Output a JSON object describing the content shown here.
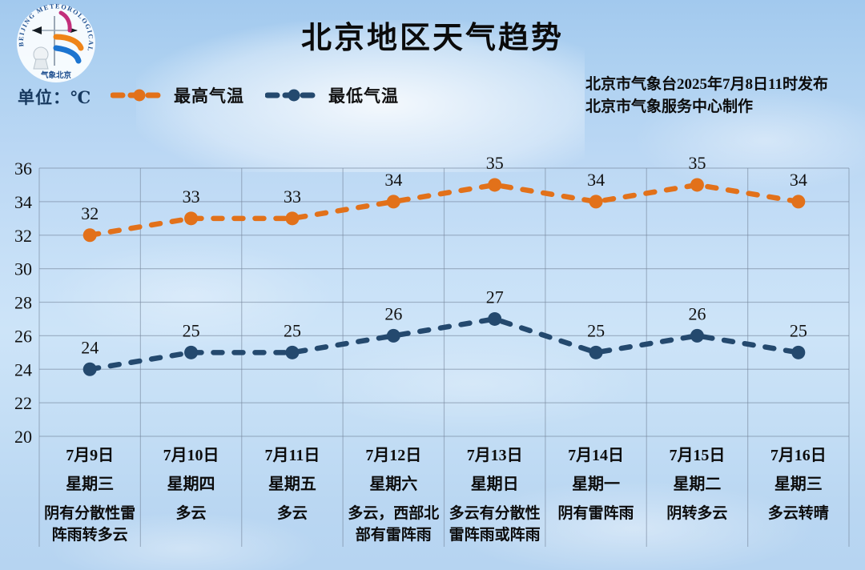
{
  "page": {
    "title": "北京地区天气趋势",
    "unit_label": "单位：℃",
    "source_line1": "北京市气象台2025年7月8日11时发布",
    "source_line2": "北京市气象服务中心制作"
  },
  "logo": {
    "ring_text": "BEIJING METEOROLOGICAL SERVICE",
    "bottom_text": "气象北京"
  },
  "colors": {
    "max_temp": "#e2711a",
    "min_temp": "#24496e",
    "grid": "rgba(120,136,158,0.55)",
    "value_text": "#111111",
    "unit_text": "#17395f"
  },
  "legend": [
    {
      "label": "最高气温",
      "series": "max_temp"
    },
    {
      "label": "最低气温",
      "series": "min_temp"
    }
  ],
  "chart_data": {
    "type": "line",
    "title": "北京地区天气趋势",
    "ylabel": "℃",
    "ylim": [
      20,
      36
    ],
    "ytick_step": 2,
    "grid": true,
    "legend_position": "top-left",
    "line_style": "dashed",
    "categories": [
      {
        "date": "7月9日",
        "weekday": "星期三",
        "weather": "阴有分散性雷阵雨转多云"
      },
      {
        "date": "7月10日",
        "weekday": "星期四",
        "weather": "多云"
      },
      {
        "date": "7月11日",
        "weekday": "星期五",
        "weather": "多云"
      },
      {
        "date": "7月12日",
        "weekday": "星期六",
        "weather": "多云，西部北部有雷阵雨"
      },
      {
        "date": "7月13日",
        "weekday": "星期日",
        "weather": "多云有分散性雷阵雨或阵雨"
      },
      {
        "date": "7月14日",
        "weekday": "星期一",
        "weather": "阴有雷阵雨"
      },
      {
        "date": "7月15日",
        "weekday": "星期二",
        "weather": "阴转多云"
      },
      {
        "date": "7月16日",
        "weekday": "星期三",
        "weather": "多云转晴"
      }
    ],
    "series": [
      {
        "name": "最高气温",
        "color_key": "max_temp",
        "values": [
          32,
          33,
          33,
          34,
          35,
          34,
          35,
          34
        ]
      },
      {
        "name": "最低气温",
        "color_key": "min_temp",
        "values": [
          24,
          25,
          25,
          26,
          27,
          25,
          26,
          25
        ]
      }
    ]
  }
}
